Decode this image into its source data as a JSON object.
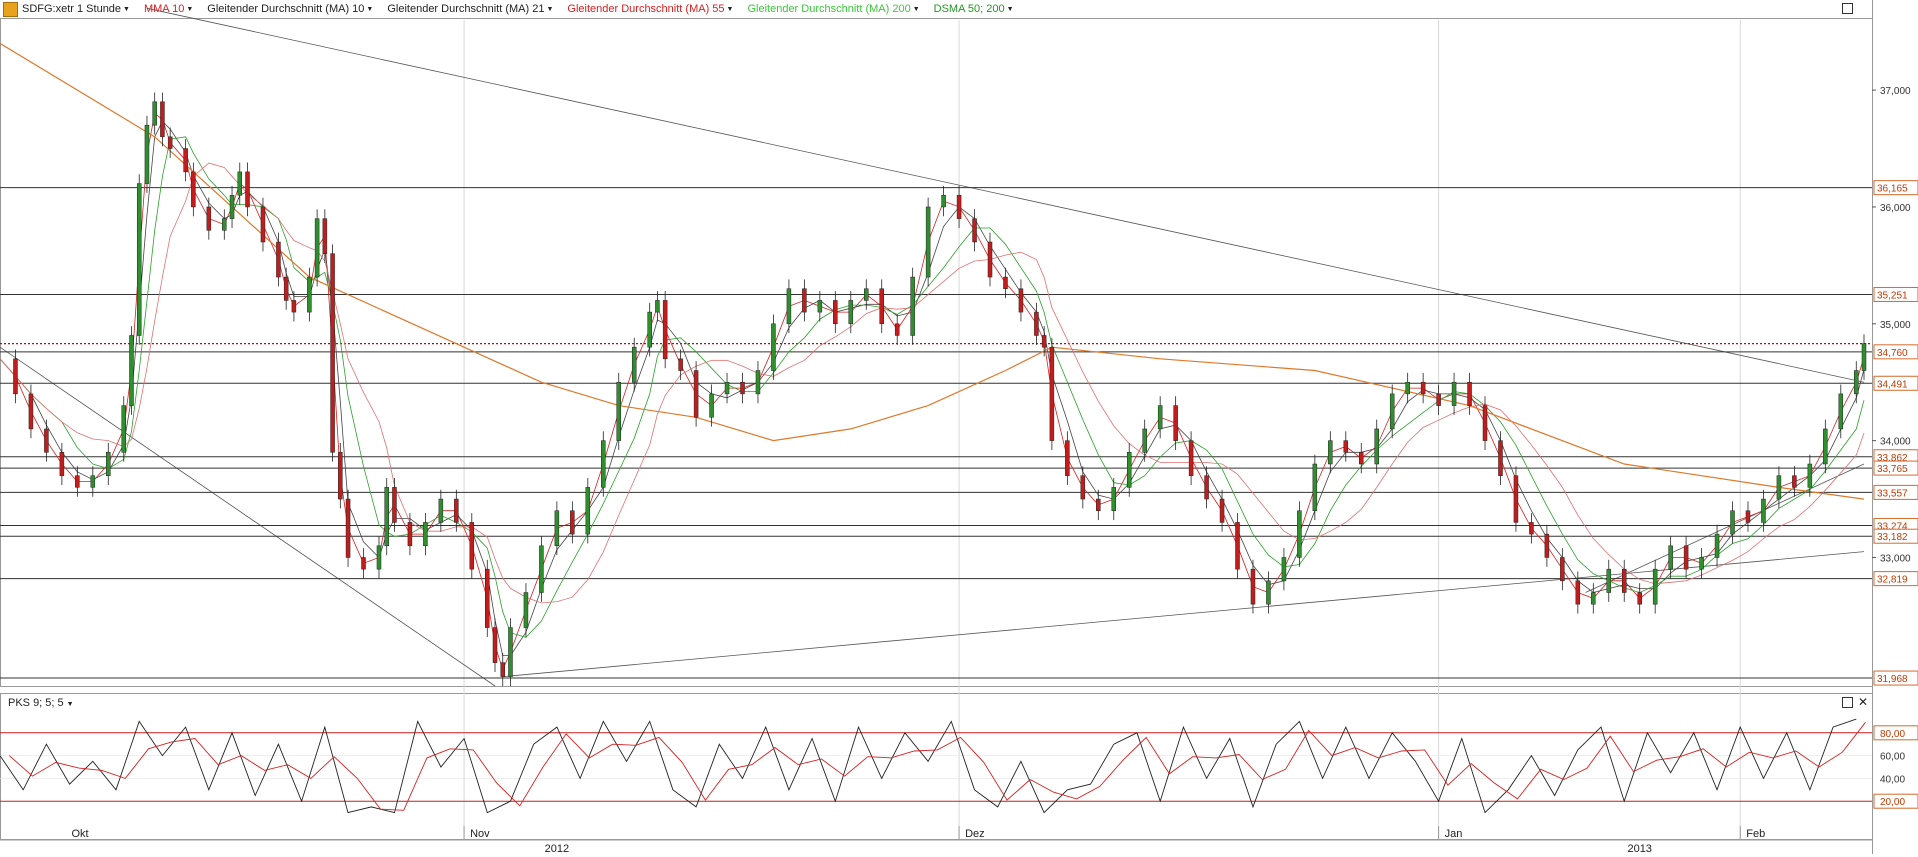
{
  "toolbar": {
    "symbol": "SDFG:xetr 1 Stunde",
    "legend": [
      {
        "label": "MMA 10",
        "color": "#d62020"
      },
      {
        "label": "Gleitender Durchschnitt (MA) 10",
        "color": "#222222"
      },
      {
        "label": "Gleitender Durchschnitt (MA) 21",
        "color": "#222222"
      },
      {
        "label": "Gleitender Durchschnitt (MA) 55",
        "color": "#d62020"
      },
      {
        "label": "Gleitender Durchschnitt (MA) 200",
        "color": "#3cc83c"
      },
      {
        "label": "DSMA 50; 200",
        "color": "#1f9a1f"
      }
    ]
  },
  "indicator": {
    "label": "PKS 9; 5; 5"
  },
  "colors": {
    "up": "#2f8f2f",
    "down": "#c11d1d",
    "ma_orange": "#e0782a",
    "level": "#333333",
    "current": "#d40000"
  },
  "chart_data": {
    "type": "line",
    "title": "",
    "price_axis": {
      "ticks": [
        37.0,
        36.0,
        35.0,
        34.0,
        33.0
      ],
      "tick_labels": [
        "37,000",
        "36,000",
        "35,000",
        "34,000",
        "33,000"
      ]
    },
    "levels": [
      {
        "value": 36.165,
        "label": "36,165"
      },
      {
        "value": 35.251,
        "label": "35,251"
      },
      {
        "value": 34.76,
        "label": "34,760"
      },
      {
        "value": 34.491,
        "label": "34,491"
      },
      {
        "value": 33.862,
        "label": "33,862"
      },
      {
        "value": 33.765,
        "label": "33,765"
      },
      {
        "value": 33.557,
        "label": "33,557"
      },
      {
        "value": 33.274,
        "label": "33,274"
      },
      {
        "value": 33.182,
        "label": "33,182"
      },
      {
        "value": 32.819,
        "label": "32,819"
      },
      {
        "value": 31.968,
        "label": "31,968"
      }
    ],
    "current_price": 34.83,
    "price_series": [
      [
        0,
        34.7
      ],
      [
        2,
        34.4
      ],
      [
        4,
        34.1
      ],
      [
        6,
        33.9
      ],
      [
        8,
        33.7
      ],
      [
        10,
        33.6
      ],
      [
        12,
        33.7
      ],
      [
        14,
        33.9
      ],
      [
        16,
        34.3
      ],
      [
        17,
        34.9
      ],
      [
        18,
        36.2
      ],
      [
        19,
        36.7
      ],
      [
        20,
        36.9
      ],
      [
        21,
        36.6
      ],
      [
        22,
        36.5
      ],
      [
        24,
        36.3
      ],
      [
        25,
        36.0
      ],
      [
        27,
        35.8
      ],
      [
        29,
        35.9
      ],
      [
        30,
        36.1
      ],
      [
        31,
        36.3
      ],
      [
        32,
        36.0
      ],
      [
        34,
        35.7
      ],
      [
        36,
        35.4
      ],
      [
        37,
        35.2
      ],
      [
        38,
        35.1
      ],
      [
        40,
        35.4
      ],
      [
        41,
        35.9
      ],
      [
        42,
        35.6
      ],
      [
        43,
        33.9
      ],
      [
        44,
        33.5
      ],
      [
        45,
        33.0
      ],
      [
        47,
        32.9
      ],
      [
        49,
        33.1
      ],
      [
        50,
        33.6
      ],
      [
        51,
        33.3
      ],
      [
        53,
        33.1
      ],
      [
        55,
        33.3
      ],
      [
        57,
        33.5
      ],
      [
        59,
        33.3
      ],
      [
        61,
        32.9
      ],
      [
        63,
        32.4
      ],
      [
        64,
        32.1
      ],
      [
        65,
        31.98
      ],
      [
        66,
        32.4
      ],
      [
        68,
        32.7
      ],
      [
        70,
        33.1
      ],
      [
        72,
        33.4
      ],
      [
        74,
        33.2
      ],
      [
        76,
        33.6
      ],
      [
        78,
        34.0
      ],
      [
        80,
        34.5
      ],
      [
        82,
        34.8
      ],
      [
        84,
        35.1
      ],
      [
        85,
        35.2
      ],
      [
        86,
        34.7
      ],
      [
        88,
        34.6
      ],
      [
        90,
        34.2
      ],
      [
        92,
        34.4
      ],
      [
        94,
        34.5
      ],
      [
        96,
        34.4
      ],
      [
        98,
        34.6
      ],
      [
        100,
        35.0
      ],
      [
        102,
        35.3
      ],
      [
        104,
        35.1
      ],
      [
        106,
        35.2
      ],
      [
        108,
        35.0
      ],
      [
        110,
        35.2
      ],
      [
        112,
        35.3
      ],
      [
        114,
        35.0
      ],
      [
        116,
        34.9
      ],
      [
        118,
        35.4
      ],
      [
        120,
        36.0
      ],
      [
        122,
        36.1
      ],
      [
        124,
        35.9
      ],
      [
        126,
        35.7
      ],
      [
        128,
        35.4
      ],
      [
        130,
        35.3
      ],
      [
        132,
        35.1
      ],
      [
        134,
        34.9
      ],
      [
        135,
        34.8
      ],
      [
        136,
        34.0
      ],
      [
        138,
        33.7
      ],
      [
        140,
        33.5
      ],
      [
        142,
        33.4
      ],
      [
        144,
        33.6
      ],
      [
        146,
        33.9
      ],
      [
        148,
        34.1
      ],
      [
        150,
        34.3
      ],
      [
        152,
        34.0
      ],
      [
        154,
        33.7
      ],
      [
        156,
        33.5
      ],
      [
        158,
        33.3
      ],
      [
        160,
        32.9
      ],
      [
        162,
        32.6
      ],
      [
        164,
        32.8
      ],
      [
        166,
        33.0
      ],
      [
        168,
        33.4
      ],
      [
        170,
        33.8
      ],
      [
        172,
        34.0
      ],
      [
        174,
        33.9
      ],
      [
        176,
        33.8
      ],
      [
        178,
        34.1
      ],
      [
        180,
        34.4
      ],
      [
        182,
        34.5
      ],
      [
        184,
        34.4
      ],
      [
        186,
        34.3
      ],
      [
        188,
        34.5
      ],
      [
        190,
        34.3
      ],
      [
        192,
        34.0
      ],
      [
        194,
        33.7
      ],
      [
        196,
        33.3
      ],
      [
        198,
        33.2
      ],
      [
        200,
        33.0
      ],
      [
        202,
        32.8
      ],
      [
        204,
        32.6
      ],
      [
        206,
        32.7
      ],
      [
        208,
        32.9
      ],
      [
        210,
        32.7
      ],
      [
        212,
        32.6
      ],
      [
        214,
        32.9
      ],
      [
        216,
        33.1
      ],
      [
        218,
        32.9
      ],
      [
        220,
        33.0
      ],
      [
        222,
        33.2
      ],
      [
        224,
        33.4
      ],
      [
        226,
        33.3
      ],
      [
        228,
        33.5
      ],
      [
        230,
        33.7
      ],
      [
        232,
        33.6
      ],
      [
        234,
        33.8
      ],
      [
        236,
        34.1
      ],
      [
        238,
        34.4
      ],
      [
        240,
        34.6
      ],
      [
        241,
        34.83
      ]
    ],
    "moving_average_200": [
      [
        0,
        37.4
      ],
      [
        20,
        36.6
      ],
      [
        40,
        35.4
      ],
      [
        60,
        34.8
      ],
      [
        70,
        34.5
      ],
      [
        80,
        34.3
      ],
      [
        90,
        34.2
      ],
      [
        100,
        34.0
      ],
      [
        110,
        34.1
      ],
      [
        120,
        34.3
      ],
      [
        130,
        34.6
      ],
      [
        136,
        34.8
      ],
      [
        150,
        34.7
      ],
      [
        170,
        34.6
      ],
      [
        190,
        34.3
      ],
      [
        210,
        33.8
      ],
      [
        230,
        33.6
      ],
      [
        241,
        33.5
      ]
    ],
    "pks_axis": {
      "ticks": [
        80,
        60,
        40,
        20
      ],
      "tick_labels": [
        "80,00",
        "60,00",
        "40,00",
        "20,00"
      ],
      "range": [
        0,
        100
      ]
    },
    "pks_series": [
      [
        0,
        60
      ],
      [
        3,
        30
      ],
      [
        6,
        70
      ],
      [
        9,
        35
      ],
      [
        12,
        55
      ],
      [
        15,
        30
      ],
      [
        18,
        90
      ],
      [
        21,
        60
      ],
      [
        24,
        85
      ],
      [
        27,
        30
      ],
      [
        30,
        80
      ],
      [
        33,
        25
      ],
      [
        36,
        70
      ],
      [
        39,
        20
      ],
      [
        42,
        85
      ],
      [
        45,
        10
      ],
      [
        48,
        15
      ],
      [
        51,
        10
      ],
      [
        54,
        90
      ],
      [
        57,
        50
      ],
      [
        60,
        75
      ],
      [
        63,
        10
      ],
      [
        66,
        20
      ],
      [
        69,
        70
      ],
      [
        72,
        85
      ],
      [
        75,
        40
      ],
      [
        78,
        90
      ],
      [
        81,
        55
      ],
      [
        84,
        90
      ],
      [
        87,
        30
      ],
      [
        90,
        15
      ],
      [
        93,
        70
      ],
      [
        96,
        40
      ],
      [
        99,
        85
      ],
      [
        102,
        30
      ],
      [
        105,
        75
      ],
      [
        108,
        20
      ],
      [
        111,
        85
      ],
      [
        114,
        40
      ],
      [
        117,
        80
      ],
      [
        120,
        55
      ],
      [
        123,
        90
      ],
      [
        126,
        30
      ],
      [
        129,
        15
      ],
      [
        132,
        55
      ],
      [
        135,
        10
      ],
      [
        138,
        30
      ],
      [
        141,
        35
      ],
      [
        144,
        70
      ],
      [
        147,
        80
      ],
      [
        150,
        20
      ],
      [
        153,
        85
      ],
      [
        156,
        40
      ],
      [
        159,
        75
      ],
      [
        162,
        15
      ],
      [
        165,
        70
      ],
      [
        168,
        90
      ],
      [
        171,
        40
      ],
      [
        174,
        85
      ],
      [
        177,
        40
      ],
      [
        180,
        80
      ],
      [
        183,
        55
      ],
      [
        186,
        20
      ],
      [
        189,
        75
      ],
      [
        192,
        10
      ],
      [
        195,
        30
      ],
      [
        198,
        60
      ],
      [
        201,
        25
      ],
      [
        204,
        65
      ],
      [
        207,
        85
      ],
      [
        210,
        20
      ],
      [
        213,
        80
      ],
      [
        216,
        45
      ],
      [
        219,
        80
      ],
      [
        222,
        30
      ],
      [
        225,
        85
      ],
      [
        228,
        40
      ],
      [
        231,
        80
      ],
      [
        234,
        30
      ],
      [
        237,
        85
      ],
      [
        240,
        92
      ]
    ],
    "time_axis": {
      "months": [
        {
          "label": "Okt",
          "pos": 0
        },
        {
          "label": "Nov",
          "pos": 60
        },
        {
          "label": "Dez",
          "pos": 124
        },
        {
          "label": "Jan",
          "pos": 186
        },
        {
          "label": "Feb",
          "pos": 225
        }
      ],
      "years": [
        {
          "label": "2012",
          "pos": 72
        },
        {
          "label": "2013",
          "pos": 212
        }
      ]
    },
    "x_range": [
      0,
      241
    ],
    "y_range": [
      31.9,
      37.6
    ]
  }
}
